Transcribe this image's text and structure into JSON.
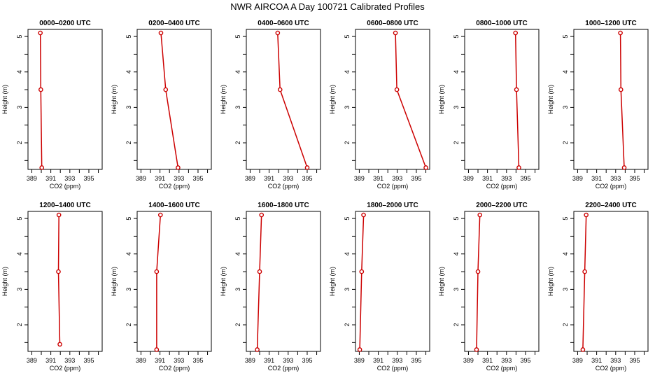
{
  "title": "NWR AIRCOA A  Day 100721  Calibrated Profiles",
  "chart_data": {
    "type": "line",
    "xlabel": "CO2 (ppm)",
    "ylabel": "Height (m)",
    "xlim": [
      388.6,
      396.4
    ],
    "ylim": [
      1.25,
      5.2
    ],
    "xticks": [
      "389",
      "391",
      "393",
      "395"
    ],
    "yticks": [
      "2",
      "3",
      "4",
      "5"
    ],
    "grid": false,
    "line_color": "#cc0000",
    "panels": [
      {
        "title": "0000–0200 UTC",
        "heights": [
          5.1,
          3.5,
          1.3
        ],
        "co2": [
          389.9,
          389.95,
          390.05
        ]
      },
      {
        "title": "0200–0400 UTC",
        "heights": [
          5.1,
          3.5,
          1.3
        ],
        "co2": [
          391.1,
          391.6,
          392.9
        ]
      },
      {
        "title": "0400–0600 UTC",
        "heights": [
          5.1,
          3.5,
          1.3
        ],
        "co2": [
          391.9,
          392.15,
          395.0
        ]
      },
      {
        "title": "0600–0800 UTC",
        "heights": [
          5.1,
          3.5,
          1.3
        ],
        "co2": [
          392.8,
          392.95,
          396.0
        ]
      },
      {
        "title": "0800–1000 UTC",
        "heights": [
          5.1,
          3.5,
          1.3
        ],
        "co2": [
          393.95,
          394.05,
          394.3
        ]
      },
      {
        "title": "1000–1200 UTC",
        "heights": [
          5.1,
          3.5,
          1.3
        ],
        "co2": [
          393.5,
          393.55,
          393.9
        ]
      },
      {
        "title": "1200–1400 UTC",
        "heights": [
          5.1,
          3.5,
          1.45
        ],
        "co2": [
          391.85,
          391.8,
          391.95
        ]
      },
      {
        "title": "1400–1600 UTC",
        "heights": [
          5.1,
          3.5,
          1.3
        ],
        "co2": [
          391.05,
          390.65,
          390.65
        ]
      },
      {
        "title": "1600–1800 UTC",
        "heights": [
          5.1,
          3.5,
          1.3
        ],
        "co2": [
          390.2,
          390.0,
          389.75
        ]
      },
      {
        "title": "1800–2000 UTC",
        "heights": [
          5.1,
          3.5,
          1.3
        ],
        "co2": [
          389.45,
          389.25,
          389.05
        ]
      },
      {
        "title": "2000–2200 UTC",
        "heights": [
          5.1,
          3.5,
          1.3
        ],
        "co2": [
          390.2,
          390.0,
          389.85
        ]
      },
      {
        "title": "2200–2400 UTC",
        "heights": [
          5.1,
          3.5,
          1.3
        ],
        "co2": [
          389.9,
          389.75,
          389.55
        ]
      }
    ]
  }
}
